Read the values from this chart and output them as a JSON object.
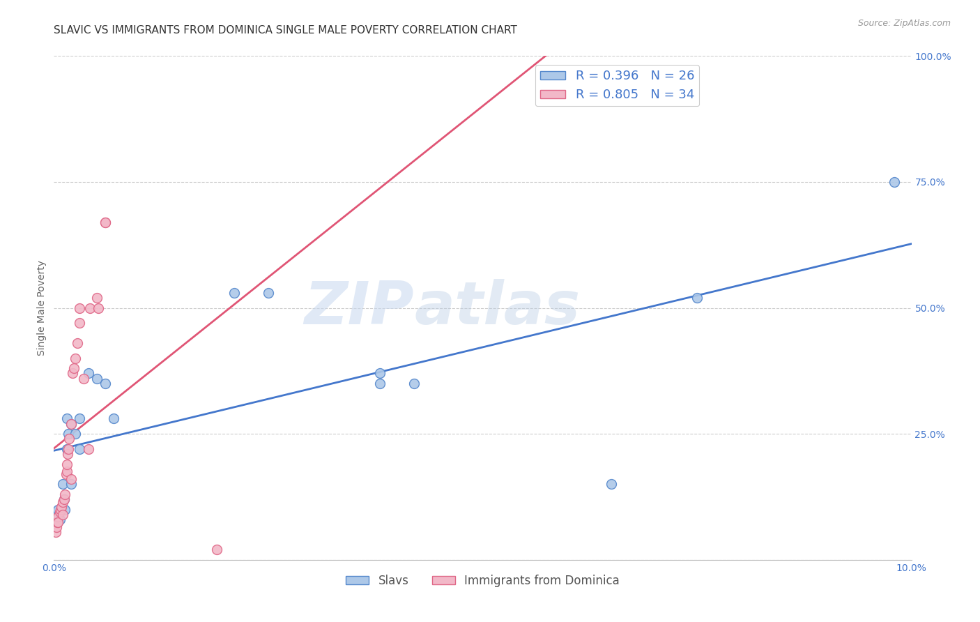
{
  "title": "SLAVIC VS IMMIGRANTS FROM DOMINICA SINGLE MALE POVERTY CORRELATION CHART",
  "source": "Source: ZipAtlas.com",
  "ylabel": "Single Male Poverty",
  "x_min": 0.0,
  "x_max": 0.1,
  "y_min": 0.0,
  "y_max": 1.0,
  "x_ticks": [
    0.0,
    0.02,
    0.04,
    0.06,
    0.08,
    0.1
  ],
  "x_tick_labels": [
    "0.0%",
    "",
    "",
    "",
    "",
    "10.0%"
  ],
  "y_ticks": [
    0.0,
    0.25,
    0.5,
    0.75,
    1.0
  ],
  "y_tick_labels_left": [
    "",
    "",
    "",
    "",
    ""
  ],
  "y_tick_labels_right": [
    "",
    "25.0%",
    "50.0%",
    "75.0%",
    "100.0%"
  ],
  "slavs_color": "#adc8e8",
  "slavs_edge_color": "#5588cc",
  "dominica_color": "#f2b8c8",
  "dominica_edge_color": "#e06888",
  "slavs_line_color": "#4477cc",
  "dominica_line_color": "#e05575",
  "slavs_r": 0.396,
  "slavs_n": 26,
  "dominica_r": 0.805,
  "dominica_n": 34,
  "legend_text_color": "#4477cc",
  "watermark_zip": "ZIP",
  "watermark_atlas": "atlas",
  "slavs_x": [
    0.0003,
    0.0005,
    0.0007,
    0.001,
    0.0012,
    0.0013,
    0.0015,
    0.0015,
    0.0017,
    0.002,
    0.002,
    0.0025,
    0.003,
    0.003,
    0.004,
    0.005,
    0.006,
    0.007,
    0.021,
    0.025,
    0.038,
    0.038,
    0.042,
    0.065,
    0.075,
    0.098
  ],
  "slavs_y": [
    0.085,
    0.1,
    0.08,
    0.15,
    0.12,
    0.1,
    0.22,
    0.28,
    0.25,
    0.27,
    0.15,
    0.25,
    0.28,
    0.22,
    0.37,
    0.36,
    0.35,
    0.28,
    0.53,
    0.53,
    0.35,
    0.37,
    0.35,
    0.15,
    0.52,
    0.75
  ],
  "dominica_x": [
    0.0002,
    0.0003,
    0.0004,
    0.0005,
    0.0005,
    0.0007,
    0.0008,
    0.0009,
    0.001,
    0.001,
    0.0012,
    0.0013,
    0.0014,
    0.0015,
    0.0015,
    0.0016,
    0.0017,
    0.0018,
    0.002,
    0.002,
    0.0022,
    0.0023,
    0.0025,
    0.0027,
    0.003,
    0.003,
    0.0035,
    0.004,
    0.0042,
    0.005,
    0.0052,
    0.006,
    0.006,
    0.019
  ],
  "dominica_y": [
    0.055,
    0.065,
    0.075,
    0.085,
    0.075,
    0.095,
    0.1,
    0.105,
    0.115,
    0.09,
    0.12,
    0.13,
    0.17,
    0.175,
    0.19,
    0.21,
    0.22,
    0.24,
    0.27,
    0.16,
    0.37,
    0.38,
    0.4,
    0.43,
    0.47,
    0.5,
    0.36,
    0.22,
    0.5,
    0.52,
    0.5,
    0.67,
    0.67,
    0.02
  ],
  "background_color": "#ffffff",
  "grid_color": "#cccccc",
  "title_fontsize": 11,
  "axis_label_fontsize": 10,
  "tick_fontsize": 10,
  "marker_size": 100
}
